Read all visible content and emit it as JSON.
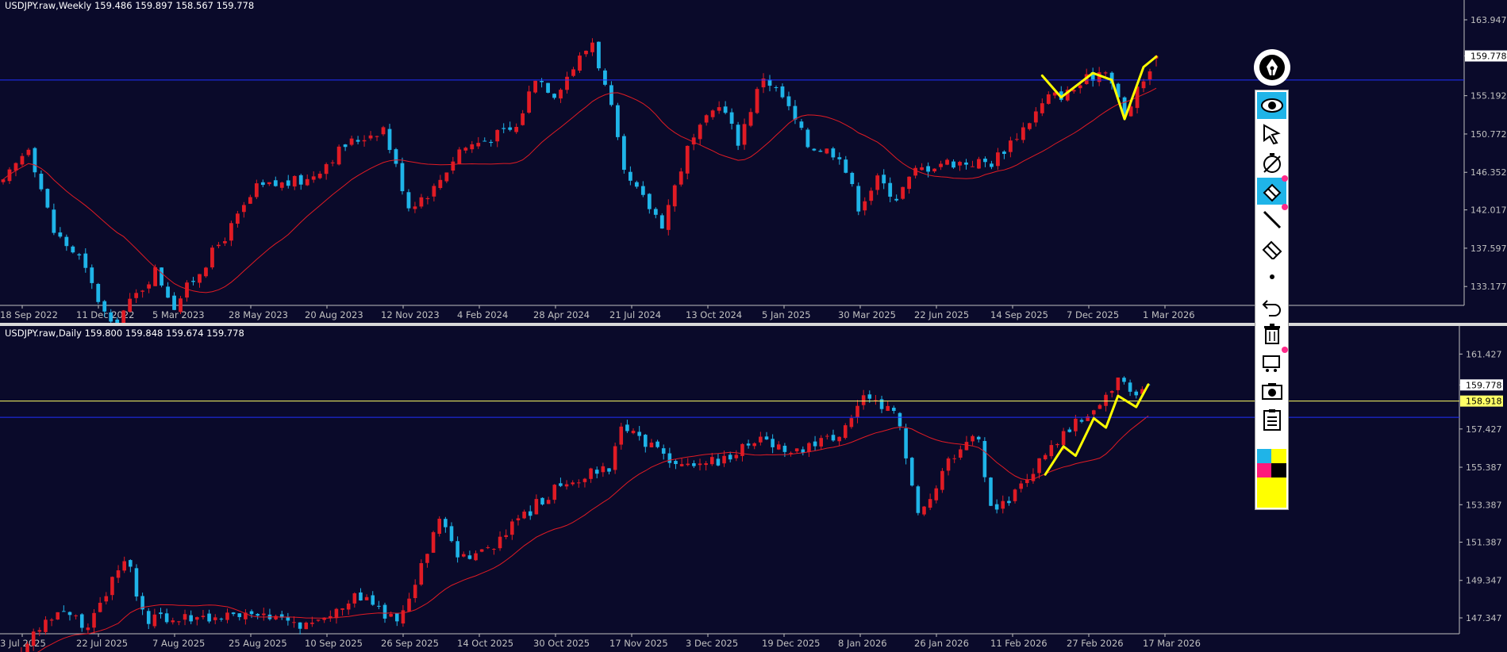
{
  "weekly": {
    "header": "USDJPY.raw,Weekly  159.486 159.897 158.567 159.778",
    "price_labels": [
      "163.947",
      "159.778",
      "155.192",
      "150.772",
      "146.352",
      "142.017",
      "137.597",
      "133.177"
    ],
    "date_labels": [
      "18 Sep 2022",
      "11 Dec 2022",
      "5 Mar 2023",
      "28 May 2023",
      "20 Aug 2023",
      "12 Nov 2023",
      "4 Feb 2024",
      "28 Apr 2024",
      "21 Jul 2024",
      "13 Oct 2024",
      "5 Jan 2025",
      "30 Mar 2025",
      "22 Jun 2025",
      "14 Sep 2025",
      "7 Dec 2025",
      "1 Mar 2026"
    ],
    "current_price": "159.778"
  },
  "daily": {
    "header": "USDJPY.raw,Daily  159.800 159.848 159.674 159.778",
    "price_labels": [
      "161.427",
      "159.778",
      "157.427",
      "155.387",
      "153.387",
      "151.387",
      "149.347",
      "147.347"
    ],
    "date_labels": [
      "3 Jul 2025",
      "22 Jul 2025",
      "7 Aug 2025",
      "25 Aug 2025",
      "10 Sep 2025",
      "26 Sep 2025",
      "14 Oct 2025",
      "30 Oct 2025",
      "17 Nov 2025",
      "3 Dec 2025",
      "19 Dec 2025",
      "8 Jan 2026",
      "26 Jan 2026",
      "11 Feb 2026",
      "27 Feb 2026",
      "17 Mar 2026"
    ],
    "current_price": "159.778",
    "hline_price": "158.918"
  },
  "colors": {
    "background": "#0a0a2a",
    "bull": "#e01b24",
    "bear": "#1fb4e8",
    "ma": "#e01b24",
    "drawing": "#ffff00",
    "hline_blue": "#2030ff",
    "hline_yellow": "#ffff66"
  },
  "toolbar_icons": [
    "pen-icon",
    "eye-icon",
    "cursor-icon",
    "timer-icon",
    "eraser-marker-icon",
    "line-icon",
    "eraser-icon",
    "dot-icon",
    "undo-icon",
    "trash-icon",
    "projector-icon",
    "camera-icon",
    "clipboard-icon",
    "color-palette-icon"
  ],
  "chart_data": [
    {
      "type": "candlestick",
      "title": "USDJPY.raw,Weekly",
      "ohlc_last": {
        "open": 159.486,
        "high": 159.897,
        "low": 158.567,
        "close": 159.778
      },
      "ylim": [
        131.0,
        165.5
      ],
      "x_start": "2022-09-18",
      "x_end": "2026-03-15",
      "xlabel": "",
      "ylabel": "",
      "anchors": [
        {
          "x": "2022-09-18",
          "y": 145.0
        },
        {
          "x": "2022-10-16",
          "y": 149.5
        },
        {
          "x": "2022-11-13",
          "y": 139.5
        },
        {
          "x": "2022-12-11",
          "y": 136.5
        },
        {
          "x": "2023-01-15",
          "y": 128.5
        },
        {
          "x": "2023-03-05",
          "y": 135.0
        },
        {
          "x": "2023-03-26",
          "y": 131.0
        },
        {
          "x": "2023-05-28",
          "y": 140.0
        },
        {
          "x": "2023-06-25",
          "y": 144.5
        },
        {
          "x": "2023-08-20",
          "y": 145.5
        },
        {
          "x": "2023-10-01",
          "y": 149.5
        },
        {
          "x": "2023-11-12",
          "y": 151.5
        },
        {
          "x": "2023-12-10",
          "y": 142.5
        },
        {
          "x": "2024-01-07",
          "y": 144.5
        },
        {
          "x": "2024-02-04",
          "y": 149.0
        },
        {
          "x": "2024-04-07",
          "y": 151.5
        },
        {
          "x": "2024-04-28",
          "y": 157.5
        },
        {
          "x": "2024-05-19",
          "y": 155.5
        },
        {
          "x": "2024-06-30",
          "y": 161.5
        },
        {
          "x": "2024-07-21",
          "y": 153.5
        },
        {
          "x": "2024-08-04",
          "y": 146.0
        },
        {
          "x": "2024-09-15",
          "y": 140.5
        },
        {
          "x": "2024-10-13",
          "y": 149.0
        },
        {
          "x": "2024-11-17",
          "y": 154.5
        },
        {
          "x": "2024-12-08",
          "y": 150.0
        },
        {
          "x": "2025-01-05",
          "y": 157.5
        },
        {
          "x": "2025-01-26",
          "y": 155.0
        },
        {
          "x": "2025-02-23",
          "y": 149.5
        },
        {
          "x": "2025-03-30",
          "y": 148.5
        },
        {
          "x": "2025-04-20",
          "y": 142.5
        },
        {
          "x": "2025-05-11",
          "y": 145.5
        },
        {
          "x": "2025-06-01",
          "y": 143.5
        },
        {
          "x": "2025-06-22",
          "y": 146.5
        },
        {
          "x": "2025-07-20",
          "y": 147.5
        },
        {
          "x": "2025-09-14",
          "y": 147.5
        },
        {
          "x": "2025-10-19",
          "y": 151.5
        },
        {
          "x": "2025-11-16",
          "y": 155.0
        },
        {
          "x": "2025-12-07",
          "y": 155.5
        },
        {
          "x": "2025-12-28",
          "y": 157.0
        },
        {
          "x": "2026-01-18",
          "y": 158.5
        },
        {
          "x": "2026-02-08",
          "y": 152.8
        },
        {
          "x": "2026-03-15",
          "y": 159.778
        }
      ],
      "ma_label": "moving average (red)",
      "annotation": "yellow hand-drawn zigzag over Nov 2025 – Mar 2026"
    },
    {
      "type": "candlestick",
      "title": "USDJPY.raw,Daily",
      "ohlc_last": {
        "open": 159.8,
        "high": 159.848,
        "low": 159.674,
        "close": 159.778
      },
      "ylim": [
        146.5,
        162.5
      ],
      "x_start": "2025-07-03",
      "x_end": "2026-03-20",
      "xlabel": "",
      "ylabel": "",
      "anchors": [
        {
          "x": "2025-07-03",
          "y": 144.5
        },
        {
          "x": "2025-07-15",
          "y": 147.8
        },
        {
          "x": "2025-07-22",
          "y": 147.0
        },
        {
          "x": "2025-07-31",
          "y": 150.5
        },
        {
          "x": "2025-08-04",
          "y": 147.2
        },
        {
          "x": "2025-08-25",
          "y": 147.5
        },
        {
          "x": "2025-09-10",
          "y": 147.0
        },
        {
          "x": "2025-09-22",
          "y": 148.5
        },
        {
          "x": "2025-10-01",
          "y": 147.0
        },
        {
          "x": "2025-10-10",
          "y": 152.5
        },
        {
          "x": "2025-10-15",
          "y": 150.5
        },
        {
          "x": "2025-10-20",
          "y": 150.8
        },
        {
          "x": "2025-11-04",
          "y": 154.0
        },
        {
          "x": "2025-11-12",
          "y": 155.0
        },
        {
          "x": "2025-11-18",
          "y": 155.5
        },
        {
          "x": "2025-11-20",
          "y": 157.5
        },
        {
          "x": "2025-12-03",
          "y": 155.5
        },
        {
          "x": "2025-12-12",
          "y": 155.7
        },
        {
          "x": "2025-12-22",
          "y": 157.0
        },
        {
          "x": "2025-12-29",
          "y": 156.2
        },
        {
          "x": "2026-01-08",
          "y": 157.0
        },
        {
          "x": "2026-01-14",
          "y": 159.0
        },
        {
          "x": "2026-01-21",
          "y": 158.5
        },
        {
          "x": "2026-01-23",
          "y": 157.0
        },
        {
          "x": "2026-01-27",
          "y": 152.5
        },
        {
          "x": "2026-02-02",
          "y": 155.5
        },
        {
          "x": "2026-02-09",
          "y": 157.5
        },
        {
          "x": "2026-02-12",
          "y": 153.0
        },
        {
          "x": "2026-02-18",
          "y": 154.0
        },
        {
          "x": "2026-02-24",
          "y": 156.0
        },
        {
          "x": "2026-03-02",
          "y": 157.5
        },
        {
          "x": "2026-03-09",
          "y": 158.8
        },
        {
          "x": "2026-03-13",
          "y": 159.9
        },
        {
          "x": "2026-03-18",
          "y": 159.0
        },
        {
          "x": "2026-03-20",
          "y": 159.778
        }
      ],
      "ma_label": "moving average (red)",
      "annotation": "yellow hand-drawn zigzag over Feb – Mar 2026"
    }
  ]
}
